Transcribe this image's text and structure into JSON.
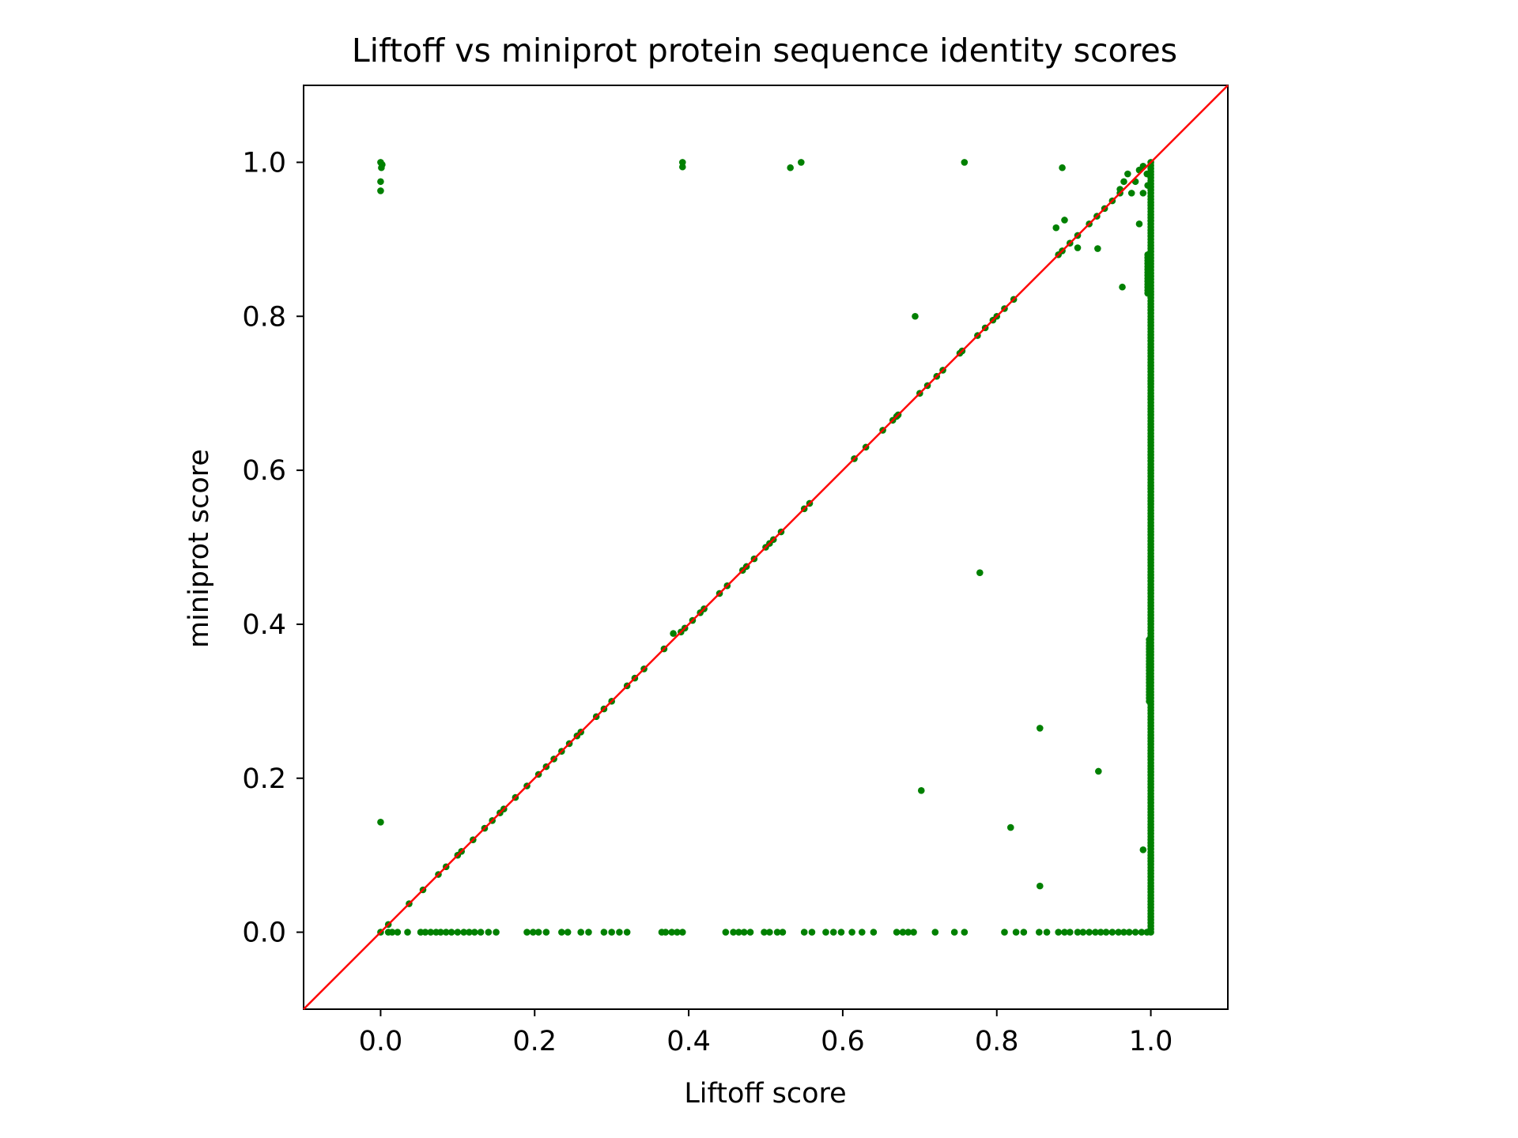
{
  "chart_data": {
    "type": "scatter",
    "title": "Liftoff vs miniprot protein sequence identity scores",
    "xlabel": "Liftoff score",
    "ylabel": "miniprot score",
    "xlim": [
      -0.1,
      1.1
    ],
    "ylim": [
      -0.1,
      1.1
    ],
    "xticks": [
      "0.0",
      "0.2",
      "0.4",
      "0.6",
      "0.8",
      "1.0"
    ],
    "yticks": [
      "0.0",
      "0.2",
      "0.4",
      "0.6",
      "0.8",
      "1.0"
    ],
    "grid": false,
    "legend": "none",
    "marker_color": "#008000",
    "reference_line": {
      "type": "y=x",
      "color": "#ff0000"
    },
    "series": [
      {
        "points": [
          [
            0.0,
            1.0
          ],
          [
            0.002,
            0.997
          ],
          [
            0.001,
            0.993
          ],
          [
            0.0,
            0.975
          ],
          [
            0.0,
            0.963
          ],
          [
            0.0,
            0.143
          ],
          [
            0.392,
            1.0
          ],
          [
            0.392,
            0.994
          ],
          [
            0.532,
            0.993
          ],
          [
            0.546,
            1.0
          ],
          [
            0.758,
            1.0
          ],
          [
            0.885,
            0.993
          ],
          [
            0.888,
            0.925
          ],
          [
            0.877,
            0.915
          ],
          [
            0.931,
            0.888
          ],
          [
            0.905,
            0.889
          ],
          [
            0.963,
            0.838
          ],
          [
            0.694,
            0.8
          ],
          [
            0.778,
            0.467
          ],
          [
            0.856,
            0.265
          ],
          [
            0.932,
            0.209
          ],
          [
            0.702,
            0.184
          ],
          [
            0.818,
            0.136
          ],
          [
            0.856,
            0.06
          ],
          [
            0.99,
            0.107
          ],
          [
            0.985,
            0.92
          ],
          [
            0.96,
            0.965
          ],
          [
            0.97,
            0.985
          ],
          [
            0.98,
            0.975
          ],
          [
            0.99,
            0.995
          ],
          [
            0.995,
            0.985
          ],
          [
            0.975,
            0.96
          ],
          [
            0.965,
            0.975
          ],
          [
            0.99,
            0.96
          ],
          [
            0.985,
            0.99
          ],
          [
            0.996,
            0.97
          ],
          [
            0.01,
            0.01
          ],
          [
            0.037,
            0.037
          ],
          [
            0.055,
            0.055
          ],
          [
            0.075,
            0.075
          ],
          [
            0.085,
            0.085
          ],
          [
            0.1,
            0.1
          ],
          [
            0.105,
            0.105
          ],
          [
            0.12,
            0.12
          ],
          [
            0.135,
            0.135
          ],
          [
            0.145,
            0.145
          ],
          [
            0.155,
            0.155
          ],
          [
            0.16,
            0.16
          ],
          [
            0.175,
            0.175
          ],
          [
            0.19,
            0.19
          ],
          [
            0.205,
            0.205
          ],
          [
            0.215,
            0.215
          ],
          [
            0.225,
            0.225
          ],
          [
            0.235,
            0.235
          ],
          [
            0.245,
            0.245
          ],
          [
            0.255,
            0.255
          ],
          [
            0.26,
            0.26
          ],
          [
            0.28,
            0.28
          ],
          [
            0.29,
            0.29
          ],
          [
            0.3,
            0.3
          ],
          [
            0.32,
            0.32
          ],
          [
            0.33,
            0.33
          ],
          [
            0.342,
            0.342
          ],
          [
            0.368,
            0.368
          ],
          [
            0.38,
            0.388
          ],
          [
            0.39,
            0.39
          ],
          [
            0.395,
            0.395
          ],
          [
            0.405,
            0.405
          ],
          [
            0.415,
            0.415
          ],
          [
            0.42,
            0.42
          ],
          [
            0.44,
            0.44
          ],
          [
            0.45,
            0.45
          ],
          [
            0.47,
            0.47
          ],
          [
            0.475,
            0.475
          ],
          [
            0.485,
            0.485
          ],
          [
            0.5,
            0.5
          ],
          [
            0.505,
            0.505
          ],
          [
            0.51,
            0.51
          ],
          [
            0.52,
            0.52
          ],
          [
            0.55,
            0.55
          ],
          [
            0.557,
            0.557
          ],
          [
            0.615,
            0.615
          ],
          [
            0.63,
            0.63
          ],
          [
            0.652,
            0.652
          ],
          [
            0.665,
            0.665
          ],
          [
            0.67,
            0.67
          ],
          [
            0.672,
            0.672
          ],
          [
            0.7,
            0.7
          ],
          [
            0.71,
            0.71
          ],
          [
            0.722,
            0.722
          ],
          [
            0.73,
            0.73
          ],
          [
            0.752,
            0.752
          ],
          [
            0.755,
            0.755
          ],
          [
            0.775,
            0.775
          ],
          [
            0.785,
            0.785
          ],
          [
            0.795,
            0.795
          ],
          [
            0.8,
            0.8
          ],
          [
            0.81,
            0.81
          ],
          [
            0.822,
            0.822
          ],
          [
            0.88,
            0.88
          ],
          [
            0.885,
            0.885
          ],
          [
            0.895,
            0.895
          ],
          [
            0.905,
            0.905
          ],
          [
            0.92,
            0.92
          ],
          [
            0.93,
            0.93
          ],
          [
            0.94,
            0.94
          ],
          [
            0.95,
            0.95
          ],
          [
            0.96,
            0.96
          ],
          [
            0.0,
            0.0
          ],
          [
            0.01,
            0.0
          ],
          [
            0.015,
            0.0
          ],
          [
            0.022,
            0.0
          ],
          [
            0.035,
            0.0
          ],
          [
            0.052,
            0.0
          ],
          [
            0.058,
            0.0
          ],
          [
            0.065,
            0.0
          ],
          [
            0.072,
            0.0
          ],
          [
            0.078,
            0.0
          ],
          [
            0.085,
            0.0
          ],
          [
            0.092,
            0.0
          ],
          [
            0.1,
            0.0
          ],
          [
            0.108,
            0.0
          ],
          [
            0.115,
            0.0
          ],
          [
            0.122,
            0.0
          ],
          [
            0.13,
            0.0
          ],
          [
            0.14,
            0.0
          ],
          [
            0.15,
            0.0
          ],
          [
            0.19,
            0.0
          ],
          [
            0.198,
            0.0
          ],
          [
            0.205,
            0.0
          ],
          [
            0.215,
            0.0
          ],
          [
            0.235,
            0.0
          ],
          [
            0.243,
            0.0
          ],
          [
            0.26,
            0.0
          ],
          [
            0.27,
            0.0
          ],
          [
            0.29,
            0.0
          ],
          [
            0.3,
            0.0
          ],
          [
            0.31,
            0.0
          ],
          [
            0.32,
            0.0
          ],
          [
            0.365,
            0.0
          ],
          [
            0.37,
            0.0
          ],
          [
            0.378,
            0.0
          ],
          [
            0.385,
            0.0
          ],
          [
            0.392,
            0.0
          ],
          [
            0.448,
            0.0
          ],
          [
            0.458,
            0.0
          ],
          [
            0.465,
            0.0
          ],
          [
            0.472,
            0.0
          ],
          [
            0.48,
            0.0
          ],
          [
            0.498,
            0.0
          ],
          [
            0.505,
            0.0
          ],
          [
            0.515,
            0.0
          ],
          [
            0.522,
            0.0
          ],
          [
            0.55,
            0.0
          ],
          [
            0.56,
            0.0
          ],
          [
            0.578,
            0.0
          ],
          [
            0.588,
            0.0
          ],
          [
            0.598,
            0.0
          ],
          [
            0.612,
            0.0
          ],
          [
            0.625,
            0.0
          ],
          [
            0.64,
            0.0
          ],
          [
            0.67,
            0.0
          ],
          [
            0.678,
            0.0
          ],
          [
            0.685,
            0.0
          ],
          [
            0.692,
            0.0
          ],
          [
            0.72,
            0.0
          ],
          [
            0.745,
            0.0
          ],
          [
            0.758,
            0.0
          ],
          [
            0.81,
            0.0
          ],
          [
            0.825,
            0.0
          ],
          [
            0.835,
            0.0
          ],
          [
            0.855,
            0.0
          ],
          [
            0.865,
            0.0
          ],
          [
            0.88,
            0.0
          ],
          [
            0.888,
            0.0
          ],
          [
            0.895,
            0.0
          ],
          [
            0.905,
            0.0
          ],
          [
            0.912,
            0.0
          ],
          [
            0.92,
            0.0
          ],
          [
            0.928,
            0.0
          ],
          [
            0.935,
            0.0
          ],
          [
            0.942,
            0.0
          ],
          [
            0.95,
            0.0
          ],
          [
            0.958,
            0.0
          ],
          [
            0.965,
            0.0
          ],
          [
            0.972,
            0.0
          ],
          [
            0.98,
            0.0
          ],
          [
            0.988,
            0.0
          ],
          [
            0.995,
            0.0
          ]
        ],
        "dense_columns": [
          {
            "x": 1.0,
            "y_from": 0.0,
            "y_to": 1.0
          },
          {
            "x": 0.996,
            "y_from": 0.83,
            "y_to": 0.88
          },
          {
            "x": 0.998,
            "y_from": 0.3,
            "y_to": 0.38
          }
        ]
      }
    ]
  }
}
